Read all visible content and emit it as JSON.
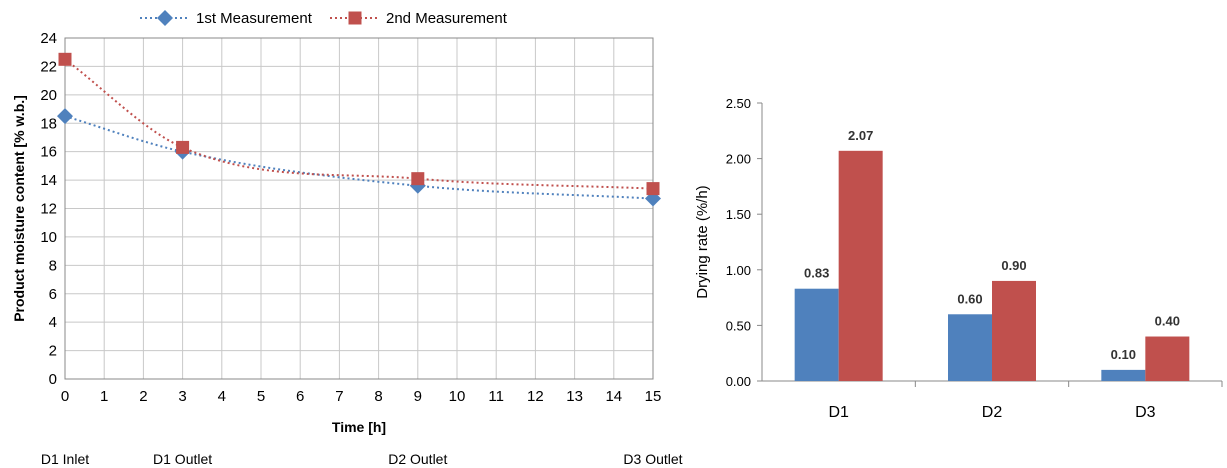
{
  "colors": {
    "series1": "#4f81bd",
    "series2": "#c0504d",
    "grid": "#c8c8c8",
    "axis": "#888888"
  },
  "chart_data": [
    {
      "type": "line",
      "title": "",
      "xlabel": "Time [h]",
      "ylabel": "Product moisture content [% w.b.]",
      "xlim": [
        0,
        15
      ],
      "ylim": [
        0,
        24
      ],
      "x_ticks": [
        "0",
        "1",
        "2",
        "3",
        "4",
        "5",
        "6",
        "7",
        "8",
        "9",
        "10",
        "11",
        "12",
        "13",
        "14",
        "15"
      ],
      "y_ticks": [
        "0",
        "2",
        "4",
        "6",
        "8",
        "10",
        "12",
        "14",
        "16",
        "18",
        "20",
        "22",
        "24"
      ],
      "grid": true,
      "legend_position": "top",
      "stage_labels": [
        {
          "x": 0,
          "text": "D1 Inlet"
        },
        {
          "x": 3,
          "text": "D1 Outlet"
        },
        {
          "x": 9,
          "text": "D2 Outlet"
        },
        {
          "x": 15,
          "text": "D3 Outlet"
        }
      ],
      "series": [
        {
          "name": "1st Measurement",
          "color": "#4f81bd",
          "marker": "diamond",
          "x": [
            0,
            3,
            9,
            15
          ],
          "y": [
            18.5,
            16.0,
            13.6,
            12.7
          ]
        },
        {
          "name": "2nd Measurement",
          "color": "#c0504d",
          "marker": "square",
          "x": [
            0,
            3,
            9,
            15
          ],
          "y": [
            22.5,
            16.3,
            14.1,
            13.4
          ]
        }
      ]
    },
    {
      "type": "bar",
      "title": "",
      "xlabel": "",
      "ylabel": "Drying rate (%/h)",
      "ylim": [
        0,
        2.5
      ],
      "y_ticks": [
        "0.00",
        "0.50",
        "1.00",
        "1.50",
        "2.00",
        "2.50"
      ],
      "grid": false,
      "categories": [
        "D1",
        "D2",
        "D3"
      ],
      "series": [
        {
          "color": "#4f81bd",
          "values": [
            0.83,
            0.6,
            0.1
          ],
          "labels": [
            "0.83",
            "0.60",
            "0.10"
          ]
        },
        {
          "color": "#c0504d",
          "values": [
            2.07,
            0.9,
            0.4
          ],
          "labels": [
            "2.07",
            "0.90",
            "0.40"
          ]
        }
      ]
    }
  ]
}
